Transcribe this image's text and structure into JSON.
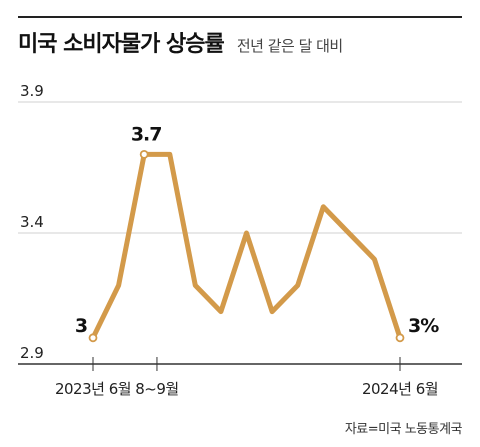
{
  "title": "미국 소비자물가 상승률",
  "subtitle": "전년 같은 달 대비",
  "source": "자료=미국 노동통계국",
  "colors": {
    "line": "#d39a4a",
    "grid": "#d0d0d0",
    "axis": "#333333",
    "text": "#222222"
  },
  "chart_data": {
    "type": "line",
    "title": "미국 소비자물가 상승률",
    "subtitle": "전년 같은 달 대비",
    "ylim": [
      2.9,
      3.9
    ],
    "yticks": [
      "3.9",
      "3.4",
      "2.9"
    ],
    "grid": true,
    "x": [
      "2023-06",
      "2023-07",
      "2023-08",
      "2023-09",
      "2023-10",
      "2023-11",
      "2023-12",
      "2024-01",
      "2024-02",
      "2024-03",
      "2024-04",
      "2024-05",
      "2024-06"
    ],
    "values": [
      3.0,
      3.2,
      3.7,
      3.7,
      3.2,
      3.1,
      3.4,
      3.1,
      3.2,
      3.5,
      3.4,
      3.3,
      3.0
    ],
    "xticks": [
      {
        "index": 0,
        "label": "2023년 6월"
      },
      {
        "index": 2.5,
        "label": "8~9월"
      },
      {
        "index": 12,
        "label": "2024년 6월"
      }
    ],
    "annotations": [
      {
        "index": 0,
        "label": "3",
        "marker": true
      },
      {
        "index": 2,
        "label": "3.7",
        "marker": true
      },
      {
        "index": 12,
        "label": "3%",
        "marker": true
      }
    ]
  }
}
